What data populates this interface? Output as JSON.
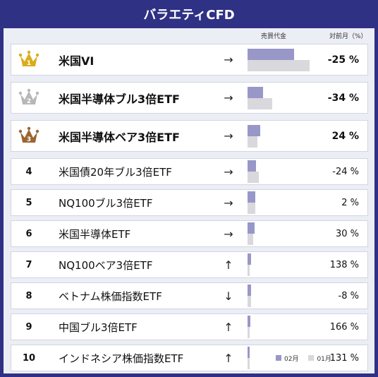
{
  "title": "バラエティCFD",
  "columns": {
    "sales": "売買代金",
    "mom": "対前月（%）"
  },
  "legend": {
    "current": "02月",
    "previous": "01月"
  },
  "colors": {
    "gold": "#d9ad1c",
    "silver": "#b7b7b7",
    "bronze": "#9b6530",
    "current_bar": "#9897c8",
    "previous_bar": "#d8d8dd"
  },
  "rows": [
    {
      "rank": "1",
      "crown": "gold",
      "name": "米国VI",
      "arrow": "→",
      "pct": "-25 %",
      "cur": 0.66,
      "prev": 0.88
    },
    {
      "rank": "2",
      "crown": "silver",
      "name": "米国半導体ブル3倍ETF",
      "arrow": "→",
      "pct": "-34 %",
      "cur": 0.22,
      "prev": 0.35
    },
    {
      "rank": "3",
      "crown": "bronze",
      "name": "米国半導体ベア3倍ETF",
      "arrow": "→",
      "pct": "24 %",
      "cur": 0.18,
      "prev": 0.14
    },
    {
      "rank": "4",
      "name": "米国債20年ブル3倍ETF",
      "arrow": "→",
      "pct": "-24 %",
      "cur": 0.12,
      "prev": 0.16
    },
    {
      "rank": "5",
      "name": "NQ100ブル3倍ETF",
      "arrow": "→",
      "pct": "2 %",
      "cur": 0.11,
      "prev": 0.11
    },
    {
      "rank": "6",
      "name": "米国半導体ETF",
      "arrow": "→",
      "pct": "30 %",
      "cur": 0.1,
      "prev": 0.08
    },
    {
      "rank": "7",
      "name": "NQ100ベア3倍ETF",
      "arrow": "↑",
      "pct": "138 %",
      "cur": 0.05,
      "prev": 0.02
    },
    {
      "rank": "8",
      "name": "ベトナム株価指数ETF",
      "arrow": "↓",
      "pct": "-8 %",
      "cur": 0.05,
      "prev": 0.05
    },
    {
      "rank": "9",
      "name": "中国ブル3倍ETF",
      "arrow": "↑",
      "pct": "166 %",
      "cur": 0.04,
      "prev": 0.02
    },
    {
      "rank": "10",
      "name": "インドネシア株価指数ETF",
      "arrow": "↑",
      "pct": "131 %",
      "cur": 0.03,
      "prev": 0.02
    }
  ]
}
